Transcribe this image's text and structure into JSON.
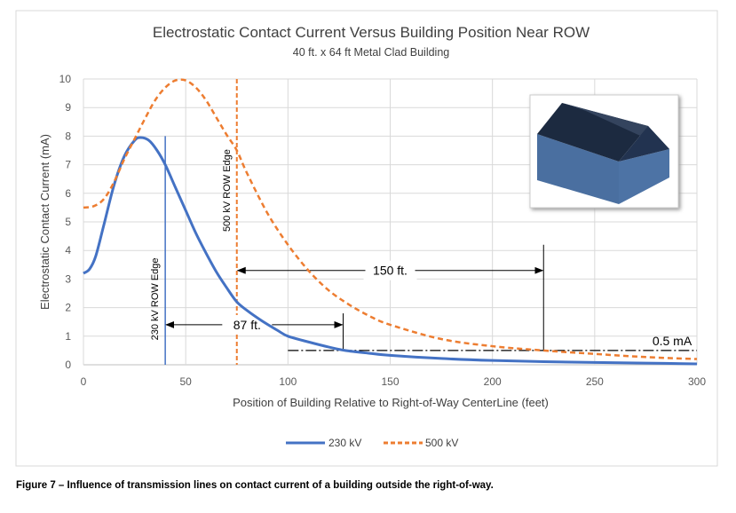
{
  "chart_data": {
    "type": "line",
    "title": "Electrostatic Contact Current Versus Building Position Near ROW",
    "subtitle": "40 ft. x 64 ft Metal Clad Building",
    "xlabel": "Position of Building Relative to Right-of-Way CenterLine (feet)",
    "ylabel": "Electrostatic Contact Current (mA)",
    "xlim": [
      0,
      300
    ],
    "ylim": [
      0,
      10
    ],
    "xticks": [
      0,
      50,
      100,
      150,
      200,
      250,
      300
    ],
    "yticks": [
      0,
      1,
      2,
      3,
      4,
      5,
      6,
      7,
      8,
      9,
      10
    ],
    "grid": true,
    "legend": "bottom",
    "series": [
      {
        "name": "230 kV",
        "color": "#4472C4",
        "style": "solid",
        "x": [
          0,
          3,
          6,
          10,
          15,
          20,
          25,
          28,
          32,
          36,
          40,
          45,
          50,
          55,
          60,
          65,
          70,
          75,
          80,
          87,
          95,
          100,
          110,
          120,
          128,
          140,
          150,
          175,
          200,
          225,
          250,
          275,
          300
        ],
        "y": [
          3.2,
          3.35,
          3.8,
          4.9,
          6.3,
          7.3,
          7.85,
          7.95,
          7.85,
          7.5,
          7.0,
          6.2,
          5.4,
          4.6,
          3.9,
          3.25,
          2.7,
          2.2,
          1.9,
          1.55,
          1.2,
          1.0,
          0.8,
          0.62,
          0.5,
          0.4,
          0.33,
          0.22,
          0.15,
          0.11,
          0.08,
          0.06,
          0.03
        ]
      },
      {
        "name": "500 kV",
        "color": "#ED7D31",
        "style": "dashed",
        "x": [
          0,
          5,
          10,
          15,
          20,
          25,
          30,
          35,
          40,
          45,
          50,
          55,
          60,
          65,
          70,
          75,
          80,
          90,
          100,
          110,
          120,
          130,
          140,
          150,
          175,
          200,
          225,
          250,
          275,
          300
        ],
        "y": [
          5.5,
          5.55,
          5.8,
          6.4,
          7.2,
          7.9,
          8.6,
          9.25,
          9.7,
          9.95,
          9.95,
          9.7,
          9.25,
          8.65,
          8.05,
          7.5,
          6.7,
          5.3,
          4.2,
          3.3,
          2.6,
          2.1,
          1.7,
          1.4,
          0.9,
          0.65,
          0.5,
          0.38,
          0.27,
          0.2
        ]
      }
    ],
    "annotations": {
      "edge_230": {
        "label": "230 kV ROW Edge",
        "x": 40
      },
      "edge_500": {
        "label": "500 kV ROW Edge",
        "x": 75
      },
      "dist_230": {
        "label": "87 ft.",
        "from": 40,
        "to": 127
      },
      "dist_500": {
        "label": "150 ft.",
        "from": 75,
        "to": 225
      },
      "threshold": {
        "label": "0.5 mA",
        "y": 0.5
      }
    }
  },
  "caption": "Figure 7 – Influence of transmission lines on contact current of a building outside the right-of-way."
}
